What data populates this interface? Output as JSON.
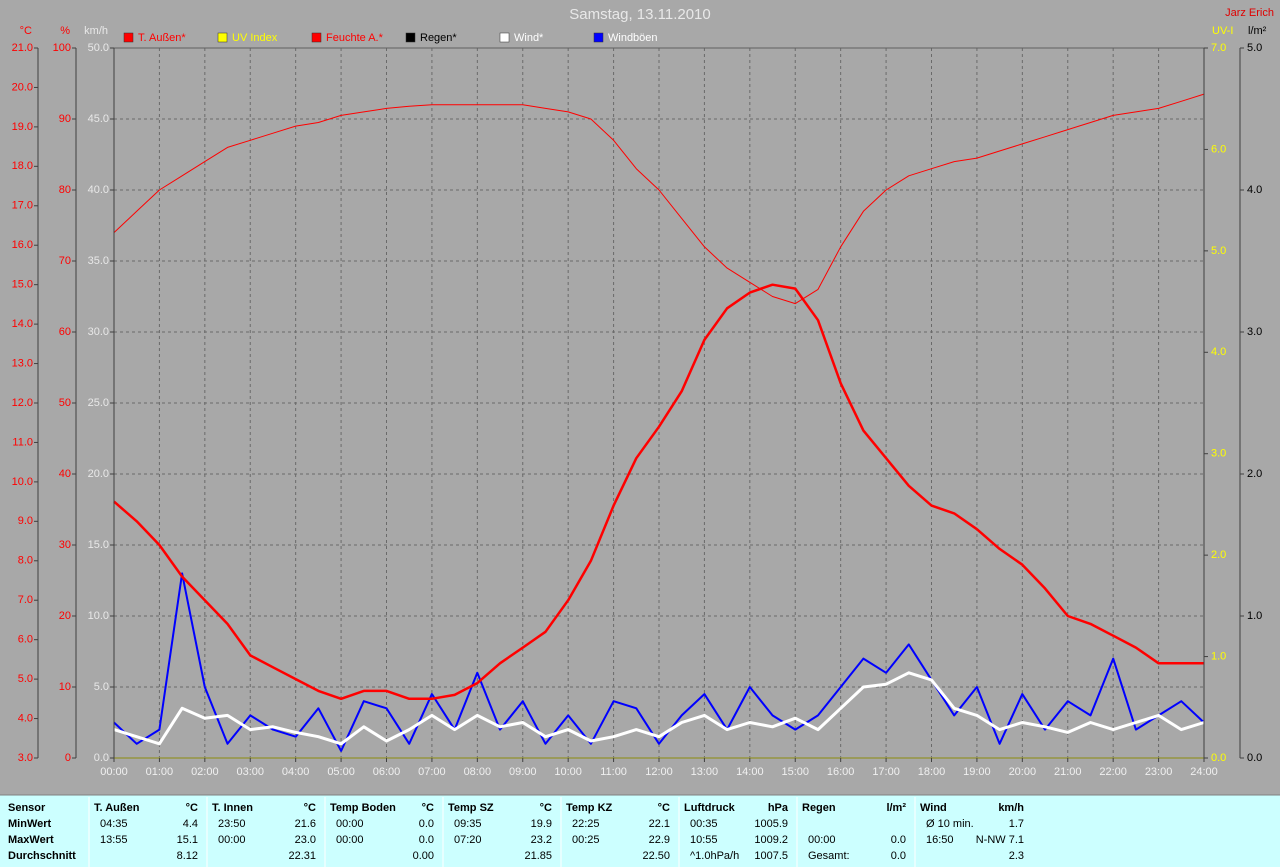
{
  "header": {
    "title": "Samstag, 13.11.2010",
    "author": "Jarz Erich"
  },
  "chart_data": {
    "type": "line",
    "x": [
      0,
      0.5,
      1,
      1.5,
      2,
      2.5,
      3,
      3.5,
      4,
      4.5,
      5,
      5.5,
      6,
      6.5,
      7,
      7.5,
      8,
      8.5,
      9,
      9.5,
      10,
      10.5,
      11,
      11.5,
      12,
      12.5,
      13,
      13.5,
      14,
      14.5,
      15,
      15.5,
      16,
      16.5,
      17,
      17.5,
      18,
      18.5,
      19,
      19.5,
      20,
      20.5,
      21,
      21.5,
      22,
      22.5,
      23,
      23.5,
      24
    ],
    "xlim": [
      0,
      24
    ],
    "xticks": [
      {
        "value": 0,
        "label": "00:00"
      },
      {
        "value": 1,
        "label": "01:00"
      },
      {
        "value": 2,
        "label": "02:00"
      },
      {
        "value": 3,
        "label": "03:00"
      },
      {
        "value": 4,
        "label": "04:00"
      },
      {
        "value": 5,
        "label": "05:00"
      },
      {
        "value": 6,
        "label": "06:00"
      },
      {
        "value": 7,
        "label": "07:00"
      },
      {
        "value": 8,
        "label": "08:00"
      },
      {
        "value": 9,
        "label": "09:00"
      },
      {
        "value": 10,
        "label": "10:00"
      },
      {
        "value": 11,
        "label": "11:00"
      },
      {
        "value": 12,
        "label": "12:00"
      },
      {
        "value": 13,
        "label": "13:00"
      },
      {
        "value": 14,
        "label": "14:00"
      },
      {
        "value": 15,
        "label": "15:00"
      },
      {
        "value": 16,
        "label": "16:00"
      },
      {
        "value": 17,
        "label": "17:00"
      },
      {
        "value": 18,
        "label": "18:00"
      },
      {
        "value": 19,
        "label": "19:00"
      },
      {
        "value": 20,
        "label": "20:00"
      },
      {
        "value": 21,
        "label": "21:00"
      },
      {
        "value": 22,
        "label": "22:00"
      },
      {
        "value": 23,
        "label": "23:00"
      },
      {
        "value": 24,
        "label": "24:00"
      }
    ],
    "grid": true,
    "axes": [
      {
        "id": "c",
        "label": "°C",
        "color": "#ff0000",
        "side": "left",
        "ylim": [
          3,
          21
        ],
        "yticks": [
          {
            "value": 3,
            "label": "3.0"
          },
          {
            "value": 4,
            "label": "4.0"
          },
          {
            "value": 5,
            "label": "5.0"
          },
          {
            "value": 6,
            "label": "6.0"
          },
          {
            "value": 7,
            "label": "7.0"
          },
          {
            "value": 8,
            "label": "8.0"
          },
          {
            "value": 9,
            "label": "9.0"
          },
          {
            "value": 10,
            "label": "10.0"
          },
          {
            "value": 11,
            "label": "11.0"
          },
          {
            "value": 12,
            "label": "12.0"
          },
          {
            "value": 13,
            "label": "13.0"
          },
          {
            "value": 14,
            "label": "14.0"
          },
          {
            "value": 15,
            "label": "15.0"
          },
          {
            "value": 16,
            "label": "16.0"
          },
          {
            "value": 17,
            "label": "17.0"
          },
          {
            "value": 18,
            "label": "18.0"
          },
          {
            "value": 19,
            "label": "19.0"
          },
          {
            "value": 20,
            "label": "20.0"
          },
          {
            "value": 21,
            "label": "21.0"
          }
        ]
      },
      {
        "id": "pct",
        "label": "%",
        "color": "#ff0000",
        "side": "left",
        "ylim": [
          0,
          100
        ],
        "grid": true,
        "yticks": [
          0,
          10,
          20,
          30,
          40,
          50,
          60,
          70,
          80,
          90,
          100
        ]
      },
      {
        "id": "kmh",
        "label": "km/h",
        "color": "#e8e8e8",
        "side": "left",
        "ylim": [
          0,
          50
        ],
        "yticks": [
          {
            "value": 0,
            "label": "0.0"
          },
          {
            "value": 5,
            "label": "5.0"
          },
          {
            "value": 10,
            "label": "10.0"
          },
          {
            "value": 15,
            "label": "15.0"
          },
          {
            "value": 20,
            "label": "20.0"
          },
          {
            "value": 25,
            "label": "25.0"
          },
          {
            "value": 30,
            "label": "30.0"
          },
          {
            "value": 35,
            "label": "35.0"
          },
          {
            "value": 40,
            "label": "40.0"
          },
          {
            "value": 45,
            "label": "45.0"
          },
          {
            "value": 50,
            "label": "50.0"
          }
        ]
      },
      {
        "id": "uv",
        "label": "UV-I",
        "color": "#ffff00",
        "side": "right",
        "ylim": [
          0,
          7
        ],
        "yticks": [
          {
            "value": 0,
            "label": "0.0"
          },
          {
            "value": 1,
            "label": "1.0"
          },
          {
            "value": 2,
            "label": "2.0"
          },
          {
            "value": 3,
            "label": "3.0"
          },
          {
            "value": 4,
            "label": "4.0"
          },
          {
            "value": 5,
            "label": "5.0"
          },
          {
            "value": 6,
            "label": "6.0"
          },
          {
            "value": 7,
            "label": "7.0"
          }
        ]
      },
      {
        "id": "rain",
        "label": "l/m²",
        "color": "#000000",
        "side": "right",
        "ylim": [
          0,
          5
        ],
        "yticks": [
          {
            "value": 0,
            "label": "0.0"
          },
          {
            "value": 1,
            "label": "1.0"
          },
          {
            "value": 2,
            "label": "2.0"
          },
          {
            "value": 3,
            "label": "3.0"
          },
          {
            "value": 4,
            "label": "4.0"
          },
          {
            "value": 5,
            "label": "5.0"
          }
        ]
      }
    ],
    "series": [
      {
        "name": "T. Außen*",
        "color": "#ff0000",
        "legend_color": "#ff0000",
        "axis": "c",
        "line_width": 2.5,
        "values": [
          9.5,
          9.0,
          8.4,
          7.6,
          7.0,
          6.4,
          5.6,
          5.3,
          5.0,
          4.7,
          4.5,
          4.7,
          4.7,
          4.5,
          4.5,
          4.6,
          4.9,
          5.4,
          5.8,
          6.2,
          7.0,
          8.0,
          9.4,
          10.6,
          11.4,
          12.3,
          13.6,
          14.4,
          14.8,
          15.0,
          14.9,
          14.1,
          12.5,
          11.3,
          10.6,
          9.9,
          9.4,
          9.2,
          8.8,
          8.3,
          7.9,
          7.3,
          6.6,
          6.4,
          6.1,
          5.8,
          5.4,
          5.4,
          5.4
        ]
      },
      {
        "name": "UV Index",
        "color": "#ffff00",
        "legend_color": "#ffff00",
        "axis": "uv",
        "line_width": 1.5,
        "values": [
          0,
          0,
          0,
          0,
          0,
          0,
          0,
          0,
          0,
          0,
          0,
          0,
          0,
          0,
          0,
          0,
          0,
          0,
          0,
          0,
          0,
          0,
          0,
          0,
          0,
          0,
          0,
          0,
          0,
          0,
          0,
          0,
          0,
          0,
          0,
          0,
          0,
          0,
          0,
          0,
          0,
          0,
          0,
          0,
          0,
          0,
          0,
          0,
          0
        ]
      },
      {
        "name": "Feuchte A.*",
        "color": "#ff0000",
        "legend_color": "#ff0000",
        "axis": "pct",
        "line_width": 1,
        "values": [
          74,
          77,
          80,
          82,
          84,
          86,
          87,
          88,
          89,
          89.5,
          90.5,
          91,
          91.5,
          91.8,
          92,
          92,
          92,
          92,
          92,
          91.5,
          91,
          90,
          87,
          83,
          80,
          76,
          72,
          69,
          67,
          65,
          64,
          66,
          72,
          77,
          80,
          82,
          83,
          84,
          84.5,
          85.5,
          86.5,
          87.5,
          88.5,
          89.5,
          90.5,
          91,
          91.5,
          92.5,
          93.5
        ]
      },
      {
        "name": "Regen*",
        "color": "#000000",
        "legend_color": "#000000",
        "axis": "rain",
        "line_width": 1.5,
        "values": [
          null,
          null,
          null,
          null,
          null,
          null,
          null,
          null,
          null,
          null,
          null,
          null,
          null,
          null,
          null,
          null,
          null,
          null,
          null,
          null,
          null,
          null,
          null,
          null,
          null,
          null,
          null,
          null,
          null,
          null,
          null,
          null,
          null,
          null,
          null,
          null,
          null,
          null,
          null,
          null,
          null,
          null,
          null,
          null,
          null,
          null,
          null,
          null,
          null
        ]
      },
      {
        "name": "Wind*",
        "color": "#ffffff",
        "legend_color": "#ffffff",
        "axis": "kmh",
        "line_width": 3,
        "values": [
          2.0,
          1.5,
          1.0,
          3.5,
          2.8,
          3.0,
          2.0,
          2.2,
          1.8,
          1.5,
          1.0,
          2.2,
          1.2,
          2.0,
          3.0,
          2.0,
          3.0,
          2.2,
          2.5,
          1.5,
          2.0,
          1.2,
          1.5,
          2.0,
          1.5,
          2.5,
          3.0,
          2.0,
          2.5,
          2.2,
          2.8,
          2.0,
          3.5,
          5.0,
          5.2,
          6.0,
          5.5,
          3.5,
          3.0,
          2.0,
          2.5,
          2.2,
          1.8,
          2.5,
          2.0,
          2.5,
          3.0,
          2.0,
          2.5
        ]
      },
      {
        "name": "Windböen",
        "color": "#0000ff",
        "legend_color": "#ffffff",
        "axis": "kmh",
        "line_width": 2,
        "values": [
          2.5,
          1.0,
          2.0,
          13.0,
          5.0,
          1.0,
          3.0,
          2.0,
          1.5,
          3.5,
          0.5,
          4.0,
          3.5,
          1.0,
          4.5,
          2.0,
          6.0,
          2.0,
          4.0,
          1.0,
          3.0,
          1.0,
          4.0,
          3.5,
          1.0,
          3.0,
          4.5,
          2.0,
          5.0,
          3.0,
          2.0,
          3.0,
          5.0,
          7.0,
          6.0,
          8.0,
          5.5,
          3.0,
          5.0,
          1.0,
          4.5,
          2.0,
          4.0,
          3.0,
          7.0,
          2.0,
          3.0,
          4.0,
          2.5
        ]
      }
    ]
  },
  "table": {
    "labels": [
      "Sensor",
      "MinWert",
      "MaxWert",
      "Durchschnitt"
    ],
    "groups": [
      {
        "name": "T. Außen",
        "unit": "°C",
        "rows": [
          [
            "04:35",
            "4.4"
          ],
          [
            "13:55",
            "15.1"
          ],
          [
            "8.12"
          ]
        ]
      },
      {
        "name": "T. Innen",
        "unit": "°C",
        "rows": [
          [
            "23:50",
            "21.6"
          ],
          [
            "00:00",
            "23.0"
          ],
          [
            "22.31"
          ]
        ]
      },
      {
        "name": "Temp Boden",
        "unit": "°C",
        "rows": [
          [
            "00:00",
            "0.0"
          ],
          [
            "00:00",
            "0.0"
          ],
          [
            "0.00"
          ]
        ]
      },
      {
        "name": "Temp SZ",
        "unit": "°C",
        "rows": [
          [
            "09:35",
            "19.9"
          ],
          [
            "07:20",
            "23.2"
          ],
          [
            "21.85"
          ]
        ]
      },
      {
        "name": "Temp KZ",
        "unit": "°C",
        "rows": [
          [
            "22:25",
            "22.1"
          ],
          [
            "00:25",
            "22.9"
          ],
          [
            "22.50"
          ]
        ]
      },
      {
        "name": "Luftdruck",
        "unit": "hPa",
        "rows": [
          [
            "00:35",
            "1005.9"
          ],
          [
            "10:55",
            "1009.2"
          ],
          [
            "^1.0hPa/h",
            "1007.5"
          ]
        ]
      },
      {
        "name": "Regen",
        "unit": "l/m²",
        "rows": [
          [],
          [
            "00:00",
            "0.0"
          ],
          [
            "Gesamt:",
            "0.0"
          ]
        ]
      },
      {
        "name": "Wind",
        "unit": "km/h",
        "rows": [
          [
            "Ø 10 min.",
            "1.7"
          ],
          [
            "16:50",
            "N-NW 7.1"
          ],
          [
            "2.3"
          ]
        ]
      }
    ]
  }
}
